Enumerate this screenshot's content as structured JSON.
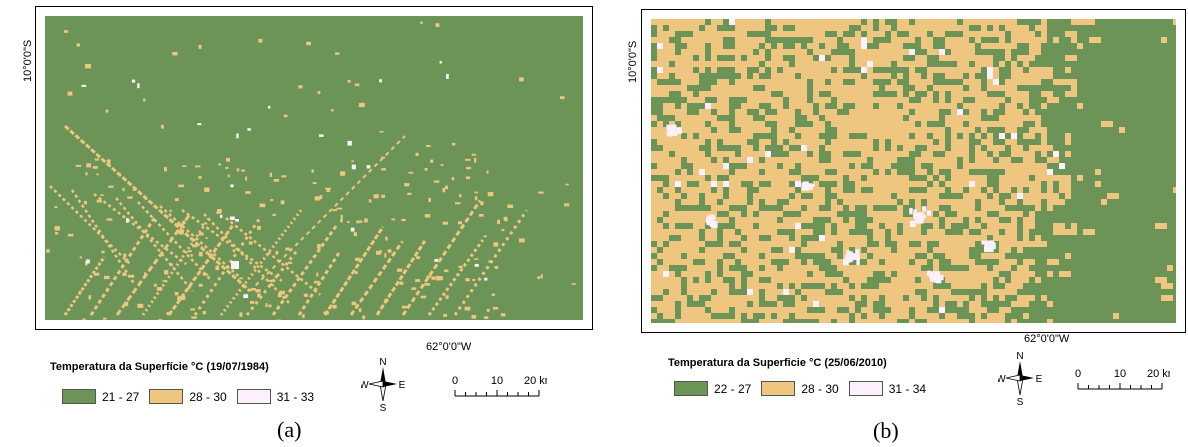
{
  "colors": {
    "class_low": "#6c9456",
    "class_mid": "#eec680",
    "class_high": "#fbf0fb",
    "frame": "#000000"
  },
  "compass": {
    "north": "N",
    "south": "S",
    "east": "E",
    "west": "W"
  },
  "scale_bar": {
    "labels": [
      "0",
      "10",
      "20 km"
    ]
  },
  "panels": [
    {
      "caption": "(a)",
      "lat_label": "10°0'0\"S",
      "lon_label": "62°0'0\"W",
      "legend": {
        "title": "Temperatura da Superfície °C (19/07/1984)",
        "classes": [
          {
            "label": "21 - 27",
            "color": "#6c9456"
          },
          {
            "label": "28 - 30",
            "color": "#eec680"
          },
          {
            "label": "31 - 33",
            "color": "#fbf0fb"
          }
        ]
      }
    },
    {
      "caption": "(b)",
      "lat_label": "10°0'0\"S",
      "lon_label": "62°0'0\"W",
      "legend": {
        "title": "Temperatura da Superficie °C (25/06/2010)",
        "classes": [
          {
            "label": "22 - 27",
            "color": "#6c9456"
          },
          {
            "label": "28 - 30",
            "color": "#eec680"
          },
          {
            "label": "31 - 34",
            "color": "#fbf0fb"
          }
        ]
      }
    }
  ]
}
